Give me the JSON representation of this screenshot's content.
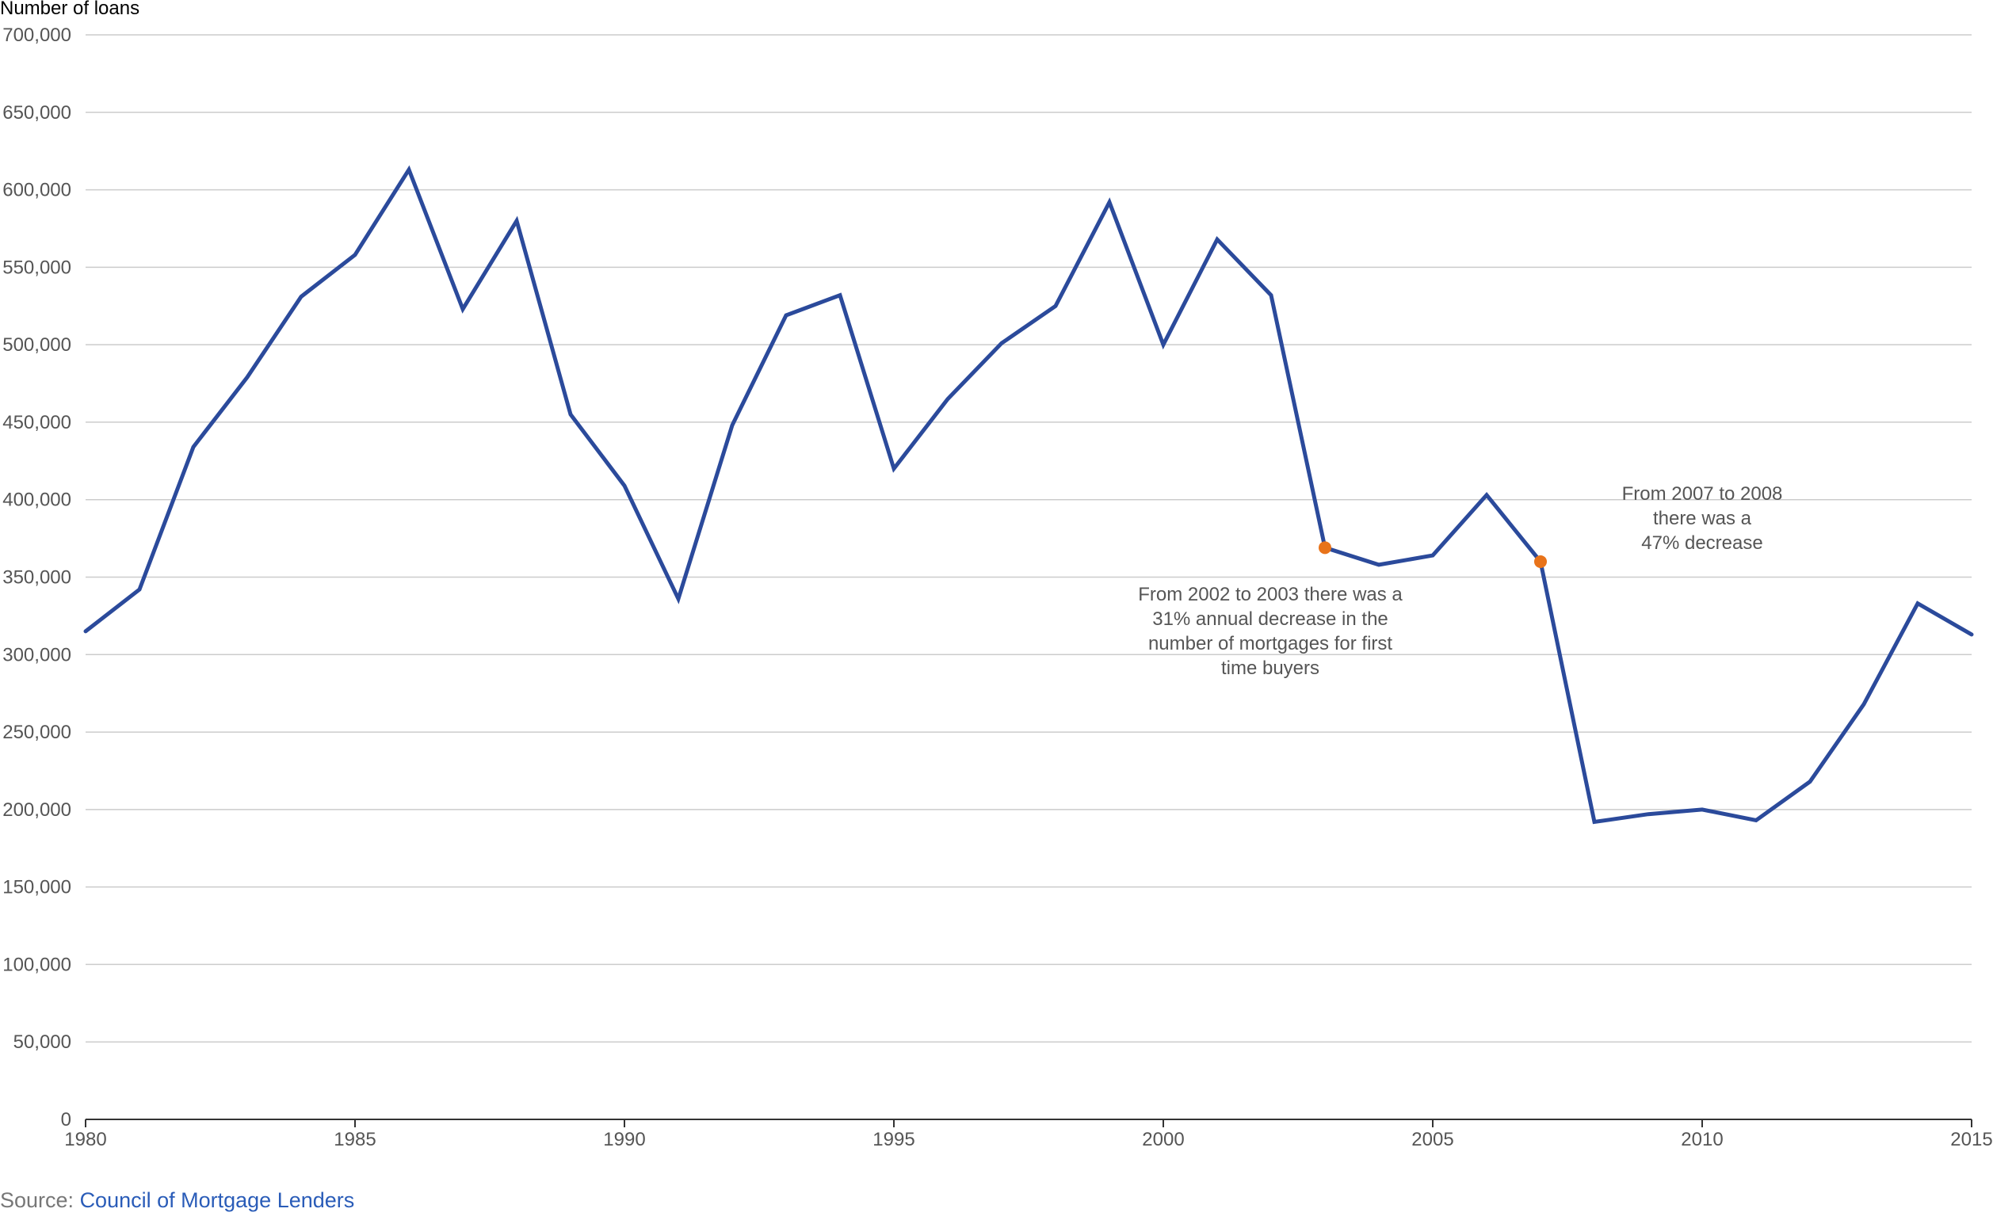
{
  "chart_data": {
    "type": "line",
    "ylabel": "Number of loans",
    "xlim": [
      1980,
      2015
    ],
    "ylim": [
      0,
      700000
    ],
    "x_ticks": [
      1980,
      1985,
      1990,
      1995,
      2000,
      2005,
      2010,
      2015
    ],
    "x_tick_labels": [
      "1980",
      "1985",
      "1990",
      "1995",
      "2000",
      "2005",
      "2010",
      "2015"
    ],
    "y_ticks": [
      0,
      50000,
      100000,
      150000,
      200000,
      250000,
      300000,
      350000,
      400000,
      450000,
      500000,
      550000,
      600000,
      650000,
      700000
    ],
    "y_tick_labels": [
      "0",
      "50,000",
      "100,000",
      "150,000",
      "200,000",
      "250,000",
      "300,000",
      "350,000",
      "400,000",
      "450,000",
      "500,000",
      "550,000",
      "600,000",
      "650,000",
      "700,000"
    ],
    "grid": "horizontal",
    "colors": {
      "line": "#2b4a9b",
      "marker": "#e8731a",
      "grid": "#cccccc",
      "axis": "#333333",
      "text": "#555555"
    },
    "series": [
      {
        "x": [
          1980,
          1981,
          1982,
          1983,
          1984,
          1985,
          1986,
          1987,
          1988,
          1989,
          1990,
          1991,
          1992,
          1993,
          1994,
          1995,
          1996,
          1997,
          1998,
          1999,
          2000,
          2001,
          2002,
          2003,
          2004,
          2005,
          2006,
          2007,
          2008,
          2009,
          2010,
          2011,
          2012,
          2013,
          2014,
          2015
        ],
        "values": [
          315000,
          342000,
          434000,
          479000,
          531000,
          558000,
          613000,
          523000,
          580000,
          455000,
          409000,
          336000,
          448000,
          519000,
          532000,
          420000,
          465000,
          501000,
          525000,
          592000,
          500000,
          568000,
          532000,
          369000,
          358000,
          364000,
          403000,
          360000,
          192000,
          197000,
          200000,
          193000,
          218000,
          268000,
          333000,
          313000
        ]
      }
    ],
    "highlight_points": [
      {
        "x": 2003,
        "y": 369000
      },
      {
        "x": 2007,
        "y": 360000
      }
    ],
    "annotations": [
      {
        "lines": [
          "From 2002 to 2003 there was a",
          "31% annual decrease in the",
          "number of mortgages for first",
          "time buyers"
        ]
      },
      {
        "lines": [
          "From 2007 to 2008",
          "there was a",
          "47% decrease"
        ]
      }
    ]
  },
  "source": {
    "prefix": "Source: ",
    "link_text": "Council of Mortgage Lenders"
  }
}
